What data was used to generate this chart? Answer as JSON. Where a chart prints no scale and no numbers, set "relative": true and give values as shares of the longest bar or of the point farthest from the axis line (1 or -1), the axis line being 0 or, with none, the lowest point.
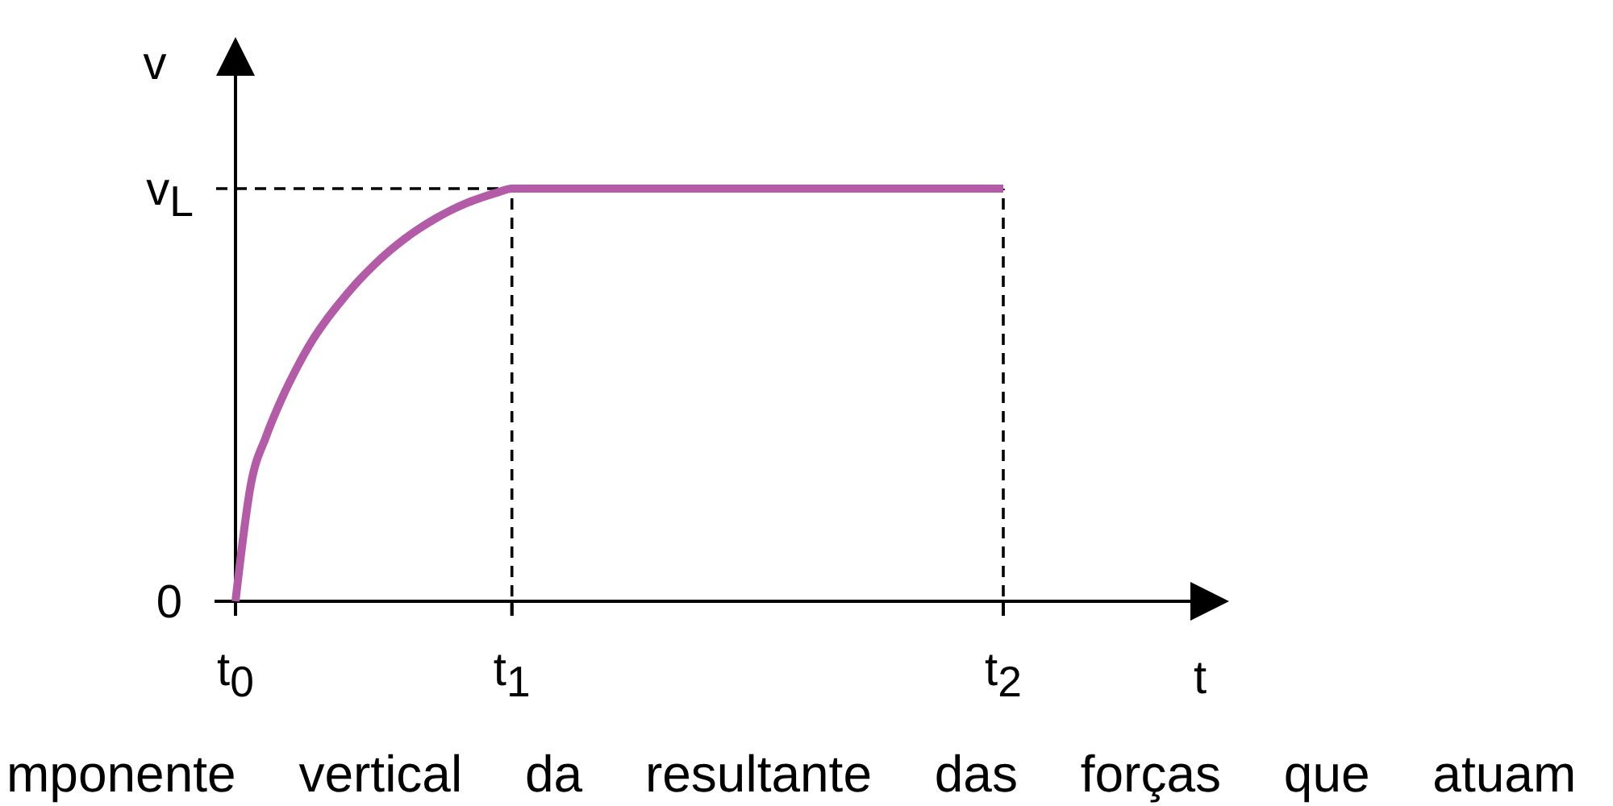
{
  "chart_data": {
    "type": "line",
    "relative": true,
    "xlabel": "t",
    "ylabel": "v",
    "categories": [
      "t$_{0}$",
      null,
      null,
      null,
      null,
      null,
      null,
      null,
      null,
      null,
      null,
      null,
      null,
      null,
      null,
      null,
      null,
      null,
      "t$_{1}$",
      null,
      null,
      null,
      null,
      null,
      null,
      null,
      null,
      null,
      null,
      null,
      null,
      null,
      null,
      null,
      null,
      null,
      null,
      null,
      null,
      null,
      null,
      null,
      null,
      null,
      null,
      null,
      null,
      null,
      null,
      null,
      "t$_{2}$"
    ],
    "series": [
      {
        "color": "#b35ba6",
        "values": [
          0,
          0.283,
          0.4,
          0.49,
          0.566,
          0.632,
          0.686,
          0.733,
          0.776,
          0.814,
          0.848,
          0.878,
          0.904,
          0.927,
          0.947,
          0.964,
          0.978,
          0.99,
          1,
          1,
          1,
          1,
          1,
          1,
          1,
          1,
          1,
          1,
          1,
          1,
          1,
          1,
          1,
          1,
          1,
          1,
          1,
          1,
          1,
          1,
          1,
          1,
          1,
          1,
          1,
          1,
          1,
          1,
          1,
          1,
          1
        ]
      }
    ],
    "ref_lines": [
      {
        "axis": "x",
        "value": "t$_{1}$",
        "line_style": "dashed",
        "color": "#000000"
      },
      {
        "axis": "x",
        "value": "t$_{2}$",
        "line_style": "dashed",
        "color": "#000000"
      },
      {
        "axis": "y",
        "value": 1,
        "label": "v$_{L}$",
        "line_style": "dashed",
        "color": "#000000"
      }
    ],
    "annotations": [
      {
        "text": "0",
        "x": "t$_{0}$",
        "y": 0
      },
      "mponente vertical da resultante das forças que atuam"
    ]
  }
}
